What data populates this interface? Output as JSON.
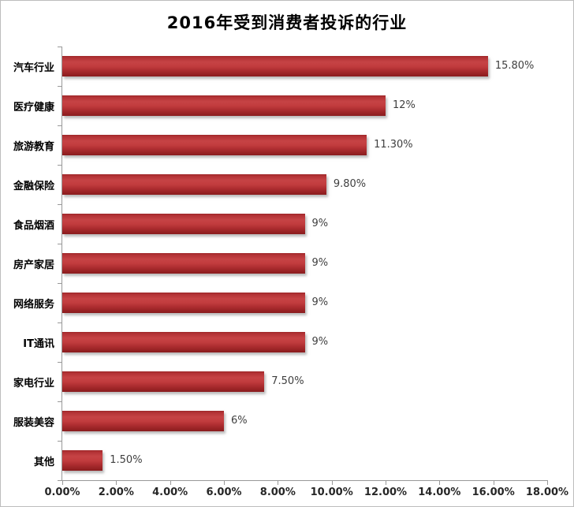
{
  "title": "2016年受到消费者投诉的行业",
  "chart_data": {
    "type": "bar",
    "orientation": "horizontal",
    "title": "2016年受到消费者投诉的行业",
    "categories": [
      "汽车行业",
      "医疗健康",
      "旅游教育",
      "金融保险",
      "食品烟酒",
      "房产家居",
      "网络服务",
      "IT通讯",
      "家电行业",
      "服装美容",
      "其他"
    ],
    "values": [
      15.8,
      12,
      11.3,
      9.8,
      9,
      9,
      9,
      9,
      7.5,
      6,
      1.5
    ],
    "value_labels": [
      "15.80%",
      "12%",
      "11.30%",
      "9.80%",
      "9%",
      "9%",
      "9%",
      "9%",
      "7.50%",
      "6%",
      "1.50%"
    ],
    "xlabel": "",
    "ylabel": "",
    "xlim": [
      0,
      18
    ],
    "x_tick_values": [
      0,
      2,
      4,
      6,
      8,
      10,
      12,
      14,
      16,
      18
    ],
    "x_tick_labels": [
      "0.00%",
      "2.00%",
      "4.00%",
      "6.00%",
      "8.00%",
      "10.00%",
      "12.00%",
      "14.00%",
      "16.00%",
      "18.00%"
    ],
    "grid": false,
    "legend": false,
    "bar_color": "#BE3538",
    "bar_shadow_color": "#c9c9c9",
    "axis_color": "#999999",
    "value_label_color": "#3f3f3f",
    "tick_label_color": "#262626"
  }
}
